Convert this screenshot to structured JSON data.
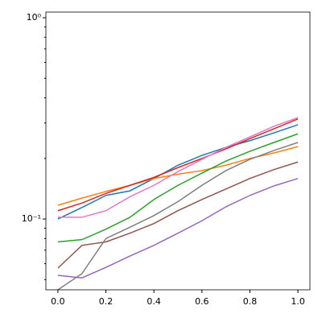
{
  "chart_data": {
    "type": "line",
    "x": [
      0,
      0.1,
      0.2,
      0.3,
      0.4,
      0.5,
      0.6,
      0.7,
      0.8,
      0.9,
      1.0
    ],
    "series": [
      {
        "color": "#1f77b4",
        "values": [
          0.1,
          0.114,
          0.131,
          0.138,
          0.159,
          0.185,
          0.207,
          0.227,
          0.245,
          0.268,
          0.294
        ]
      },
      {
        "color": "#ff7f0e",
        "values": [
          0.117,
          0.127,
          0.137,
          0.147,
          0.159,
          0.167,
          0.174,
          0.185,
          0.2,
          0.213,
          0.229
        ]
      },
      {
        "color": "#2ca02c",
        "values": [
          0.077,
          0.079,
          0.089,
          0.102,
          0.125,
          0.147,
          0.169,
          0.194,
          0.217,
          0.24,
          0.265
        ]
      },
      {
        "color": "#d62728",
        "values": [
          0.11,
          0.12,
          0.134,
          0.147,
          0.161,
          0.18,
          0.2,
          0.223,
          0.251,
          0.281,
          0.314
        ]
      },
      {
        "color": "#9467bd",
        "values": [
          0.0525,
          0.051,
          0.0575,
          0.0655,
          0.074,
          0.085,
          0.098,
          0.115,
          0.131,
          0.146,
          0.159
        ]
      },
      {
        "color": "#8c564b",
        "values": [
          0.057,
          0.074,
          0.077,
          0.085,
          0.095,
          0.11,
          0.125,
          0.141,
          0.159,
          0.176,
          0.192
        ]
      },
      {
        "color": "#e377c2",
        "values": [
          0.102,
          0.102,
          0.11,
          0.129,
          0.147,
          0.172,
          0.198,
          0.227,
          0.256,
          0.289,
          0.319
        ]
      },
      {
        "color": "#7f7f7f",
        "values": [
          0.0445,
          0.0535,
          0.08,
          0.091,
          0.104,
          0.122,
          0.147,
          0.174,
          0.198,
          0.219,
          0.24
        ]
      }
    ],
    "xlim": [
      -0.05,
      1.05
    ],
    "xticks": [
      {
        "value": 0,
        "label": "0.0"
      },
      0.2,
      0.4,
      0.6,
      0.8,
      {
        "value": 1,
        "label": "1.0"
      }
    ],
    "ylim": [
      0.0445,
      1.067
    ],
    "yscale": "log",
    "yticks": [
      {
        "value": 0.1,
        "label": "10⁻¹"
      },
      {
        "value": 1,
        "label": "10⁰"
      }
    ],
    "yminorticks": [
      0.05,
      0.06,
      0.07,
      0.08,
      0.09,
      0.2,
      0.3,
      0.4,
      0.5,
      0.6,
      0.7,
      0.8,
      0.9
    ]
  }
}
